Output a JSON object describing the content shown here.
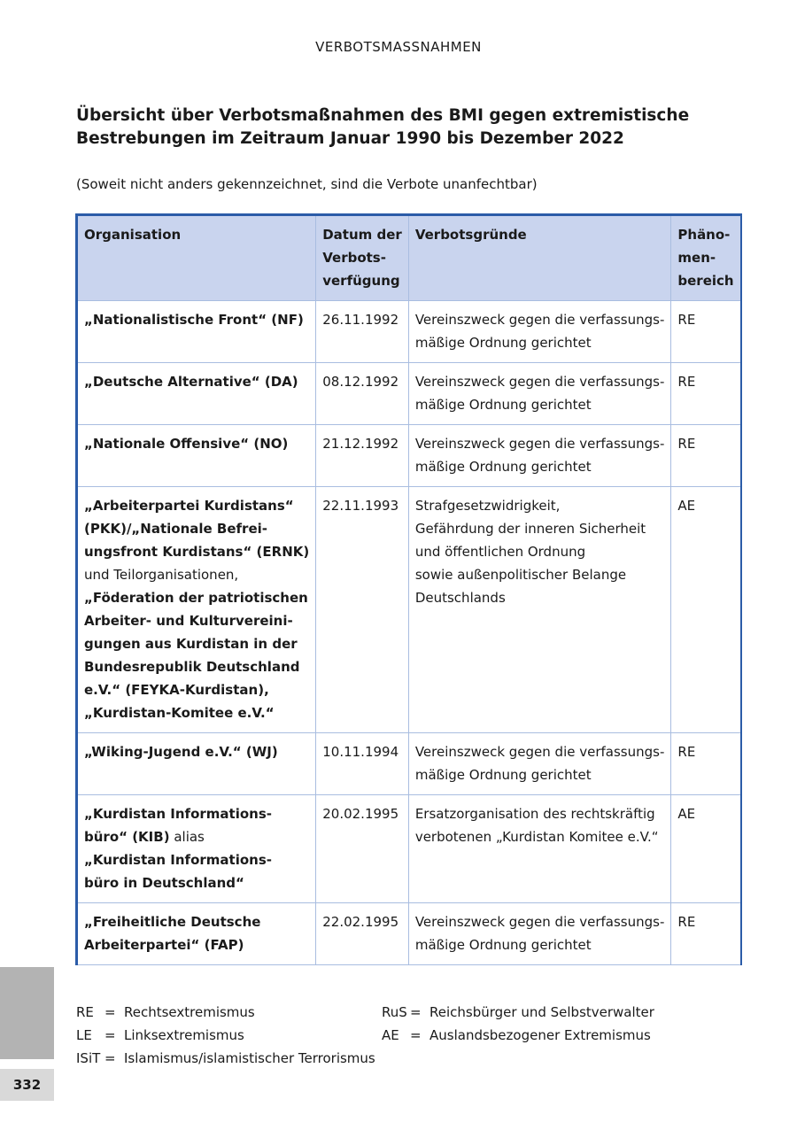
{
  "running_head": "VERBOTSMASSNAHMEN",
  "title_lines": [
    "Übersicht über Verbotsmaßnahmen des BMI gegen extremistische",
    "Bestrebungen im Zeitraum Januar 1990 bis Dezember 2022"
  ],
  "subtitle": "(Soweit nicht anders gekennzeichnet, sind die Verbote unanfechtbar)",
  "table": {
    "headers": [
      [
        "Organisation"
      ],
      [
        "Datum der",
        "Verbots-",
        "verfügung"
      ],
      [
        "Verbotsgründe"
      ],
      [
        "Phäno-",
        "men-",
        "bereich"
      ]
    ],
    "rows": [
      {
        "org": [
          [
            {
              "t": "„Nationalistische Front“ (NF)",
              "b": true
            }
          ]
        ],
        "date": "26.11.1992",
        "reasons": [
          "Vereinszweck gegen die verfassungs-",
          "mäßige Ordnung gerichtet"
        ],
        "area": "RE"
      },
      {
        "org": [
          [
            {
              "t": "„Deutsche Alternative“ (DA)",
              "b": true
            }
          ]
        ],
        "date": "08.12.1992",
        "reasons": [
          "Vereinszweck gegen die verfassungs-",
          "mäßige Ordnung gerichtet"
        ],
        "area": "RE"
      },
      {
        "org": [
          [
            {
              "t": "„Nationale Offensive“ (NO)",
              "b": true
            }
          ]
        ],
        "date": "21.12.1992",
        "reasons": [
          "Vereinszweck gegen die verfassungs-",
          "mäßige Ordnung gerichtet"
        ],
        "area": "RE"
      },
      {
        "org": [
          [
            {
              "t": "„Arbeiterpartei Kurdistans“",
              "b": true
            }
          ],
          [
            {
              "t": "(PKK)/„Nationale Befrei-",
              "b": true
            }
          ],
          [
            {
              "t": "ungsfront Kurdistans“ (ERNK)",
              "b": true
            }
          ],
          [
            {
              "t": "und Teilorganisationen,",
              "b": false
            }
          ],
          [
            {
              "t": "„Föderation der patriotischen",
              "b": true
            }
          ],
          [
            {
              "t": "Arbeiter- und Kulturvereini-",
              "b": true
            }
          ],
          [
            {
              "t": "gungen aus Kurdistan in der",
              "b": true
            }
          ],
          [
            {
              "t": "Bundesrepublik Deutschland",
              "b": true
            }
          ],
          [
            {
              "t": "e.V.“ (FEYKA-Kurdistan),",
              "b": true
            }
          ],
          [
            {
              "t": "„Kurdistan-Komitee e.V.“",
              "b": true
            }
          ]
        ],
        "date": "22.11.1993",
        "reasons": [
          "Strafgesetzwidrigkeit,",
          "Gefährdung der inneren Sicherheit",
          "und öffentlichen Ordnung",
          "sowie außenpolitischer Belange",
          "Deutschlands"
        ],
        "area": "AE"
      },
      {
        "org": [
          [
            {
              "t": "„Wiking-Jugend e.V.“ (WJ)",
              "b": true
            }
          ]
        ],
        "date": "10.11.1994",
        "reasons": [
          "Vereinszweck gegen die verfassungs-",
          "mäßige Ordnung gerichtet"
        ],
        "area": "RE"
      },
      {
        "org": [
          [
            {
              "t": "„Kurdistan Informations-",
              "b": true
            }
          ],
          [
            {
              "t": "büro“ (KIB)",
              "b": true
            },
            {
              "t": " alias",
              "b": false
            }
          ],
          [
            {
              "t": "„Kurdistan Informations-",
              "b": true
            }
          ],
          [
            {
              "t": "büro in Deutschland“",
              "b": true
            }
          ]
        ],
        "date": "20.02.1995",
        "reasons": [
          "Ersatzorganisation des rechtskräftig",
          "verbotenen „Kurdistan Komitee e.V.“"
        ],
        "area": "AE"
      },
      {
        "org": [
          [
            {
              "t": "„Freiheitliche Deutsche",
              "b": true
            }
          ],
          [
            {
              "t": "Arbeiterpartei“ (FAP)",
              "b": true
            }
          ]
        ],
        "date": "22.02.1995",
        "reasons": [
          "Vereinszweck gegen die verfassungs-",
          "mäßige Ordnung gerichtet"
        ],
        "area": "RE"
      }
    ]
  },
  "legend": {
    "left": [
      {
        "abbr": "RE",
        "eq": "=",
        "text": "Rechtsextremismus"
      },
      {
        "abbr": "LE",
        "eq": "=",
        "text": "Linksextremismus"
      },
      {
        "abbr": "ISiT",
        "eq": "=",
        "text": "Islamismus/islamistischer Terrorismus"
      }
    ],
    "right": [
      {
        "abbr": "RuS",
        "eq": "=",
        "text": "Reichsbürger und Selbstverwalter"
      },
      {
        "abbr": "AE",
        "eq": "=",
        "text": "Auslandsbezogener Extremismus"
      }
    ]
  },
  "page_number": "332",
  "colors": {
    "header_bg": "#c9d4ee",
    "frame": "#2b5ca8",
    "grid": "#a9bde0",
    "side_bar": "#b3b3b3"
  }
}
